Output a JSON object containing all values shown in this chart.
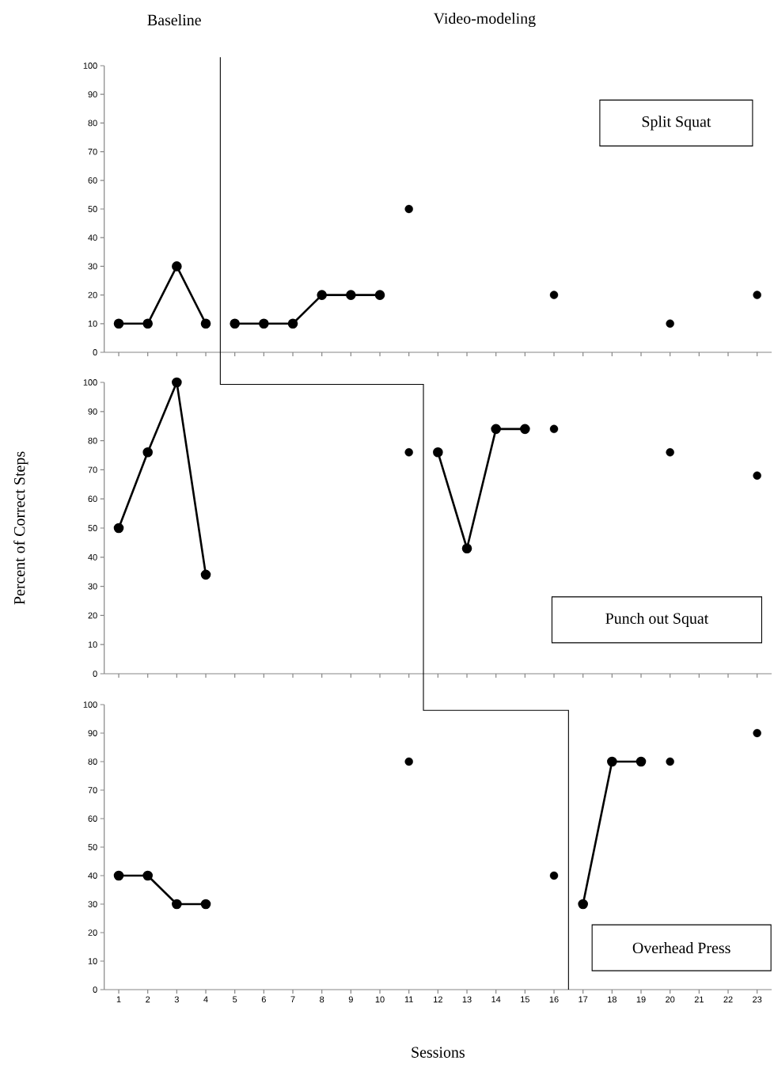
{
  "chart_data": [
    {
      "type": "line",
      "title": "Split Squat",
      "annotations": [
        "Baseline",
        "Video-modeling"
      ],
      "xlim": [
        0.5,
        23.5
      ],
      "xticks": [
        1,
        2,
        3,
        4,
        5,
        6,
        7,
        8,
        9,
        10,
        11,
        12,
        13,
        14,
        15,
        16,
        17,
        18,
        19,
        20,
        21,
        22,
        23
      ],
      "ylim": [
        0,
        100
      ],
      "yticks": [
        0,
        10,
        20,
        30,
        40,
        50,
        60,
        70,
        80,
        90,
        100
      ],
      "tick_labels": "y",
      "marker": "circle",
      "line_style": "solid",
      "ref_lines": [
        {
          "axis": "x",
          "value": 4.5,
          "color": "#000000"
        }
      ],
      "series": [
        {
          "type": "line",
          "color": "#000000",
          "x": [
            1,
            2,
            3,
            4
          ],
          "values": [
            10,
            10,
            30,
            10
          ]
        },
        {
          "type": "line",
          "color": "#000000",
          "x": [
            5,
            6,
            7,
            8,
            9,
            10
          ],
          "values": [
            10,
            10,
            10,
            20,
            20,
            20
          ]
        },
        {
          "type": "scatter",
          "color": "#000000",
          "x": [
            11,
            16,
            20,
            23
          ],
          "values": [
            50,
            20,
            10,
            20
          ]
        }
      ]
    },
    {
      "type": "line",
      "title": "Punch out Squat",
      "ylabel": "Percent of Correct Steps",
      "xlim": [
        0.5,
        23.5
      ],
      "xticks": [
        1,
        2,
        3,
        4,
        5,
        6,
        7,
        8,
        9,
        10,
        11,
        12,
        13,
        14,
        15,
        16,
        17,
        18,
        19,
        20,
        21,
        22,
        23
      ],
      "ylim": [
        0,
        100
      ],
      "yticks": [
        0,
        10,
        20,
        30,
        40,
        50,
        60,
        70,
        80,
        90,
        100
      ],
      "tick_labels": "y",
      "marker": "circle",
      "line_style": "solid",
      "ref_lines": [
        {
          "axis": "x",
          "value": 11.5,
          "color": "#000000"
        }
      ],
      "series": [
        {
          "type": "line",
          "color": "#000000",
          "x": [
            1,
            2,
            3,
            4
          ],
          "values": [
            50,
            76,
            100,
            34
          ]
        },
        {
          "type": "line",
          "color": "#000000",
          "x": [
            12,
            13,
            14,
            15
          ],
          "values": [
            76,
            43,
            84,
            84
          ]
        },
        {
          "type": "scatter",
          "color": "#000000",
          "x": [
            11,
            16,
            20,
            23
          ],
          "values": [
            76,
            84,
            76,
            68
          ]
        }
      ]
    },
    {
      "type": "line",
      "title": "Overhead Press",
      "xlabel": "Sessions",
      "xlim": [
        0.5,
        23.5
      ],
      "xticks": [
        1,
        2,
        3,
        4,
        5,
        6,
        7,
        8,
        9,
        10,
        11,
        12,
        13,
        14,
        15,
        16,
        17,
        18,
        19,
        20,
        21,
        22,
        23
      ],
      "ylim": [
        0,
        100
      ],
      "yticks": [
        0,
        10,
        20,
        30,
        40,
        50,
        60,
        70,
        80,
        90,
        100
      ],
      "marker": "circle",
      "line_style": "solid",
      "ref_lines": [
        {
          "axis": "x",
          "value": 16.5,
          "color": "#000000"
        }
      ],
      "series": [
        {
          "type": "line",
          "color": "#000000",
          "x": [
            1,
            2,
            3,
            4
          ],
          "values": [
            40,
            40,
            30,
            30
          ]
        },
        {
          "type": "line",
          "color": "#000000",
          "x": [
            17,
            18,
            19
          ],
          "values": [
            30,
            80,
            80
          ]
        },
        {
          "type": "scatter",
          "color": "#000000",
          "x": [
            11,
            16,
            20,
            23
          ],
          "values": [
            80,
            40,
            80,
            90
          ]
        }
      ]
    }
  ]
}
